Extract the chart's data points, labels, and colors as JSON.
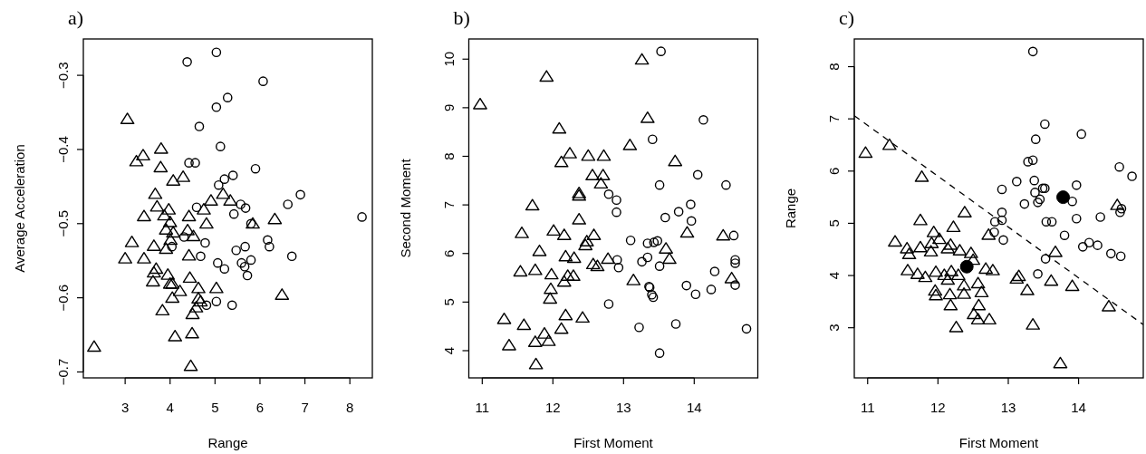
{
  "chart_data": [
    {
      "type": "scatter",
      "title": "a)",
      "xlabel": "Range",
      "ylabel": "Average Acceleration",
      "xlim": [
        2.07,
        8.5
      ],
      "ylim": [
        -0.708,
        -0.251
      ],
      "xticks": [
        3,
        4,
        5,
        6,
        7,
        8
      ],
      "yticks": [
        -0.7,
        -0.6,
        -0.5,
        -0.4,
        -0.3
      ],
      "series": [
        {
          "color": "#000000",
          "marker": "triangle",
          "x": [
            3.05,
            3.25,
            3.4,
            3.8,
            3.79,
            4.07,
            4.29,
            3.67,
            5.18,
            4.91,
            5.34,
            3.71,
            3.97,
            4.75,
            6.33,
            3.42,
            3.87,
            4.42,
            4.0,
            4.81,
            5.84,
            4.39,
            4.52,
            3.91,
            4.07,
            3.15,
            4.01,
            3.64,
            3.91,
            3.0,
            3.42,
            4.42,
            3.69,
            3.64,
            3.62,
            3.95,
            4.0,
            4.05,
            4.22,
            4.05,
            4.44,
            4.63,
            5.03,
            6.49,
            4.63,
            4.68,
            4.58,
            3.83,
            4.5,
            4.49,
            4.11,
            2.31,
            4.46
          ],
          "values": [
            -0.359,
            -0.416,
            -0.408,
            -0.399,
            -0.424,
            -0.442,
            -0.437,
            -0.46,
            -0.46,
            -0.469,
            -0.469,
            -0.477,
            -0.481,
            -0.481,
            -0.494,
            -0.49,
            -0.489,
            -0.49,
            -0.498,
            -0.5,
            -0.5,
            -0.509,
            -0.517,
            -0.508,
            -0.512,
            -0.525,
            -0.522,
            -0.53,
            -0.534,
            -0.547,
            -0.547,
            -0.543,
            -0.561,
            -0.566,
            -0.578,
            -0.569,
            -0.581,
            -0.581,
            -0.591,
            -0.6,
            -0.573,
            -0.587,
            -0.587,
            -0.596,
            -0.601,
            -0.605,
            -0.613,
            -0.617,
            -0.622,
            -0.648,
            -0.652,
            -0.666,
            -0.692
          ]
        },
        {
          "color": "#000000",
          "marker": "circle",
          "x": [
            5.03,
            4.38,
            6.07,
            5.28,
            5.03,
            4.65,
            5.12,
            4.42,
            4.56,
            5.9,
            5.4,
            5.21,
            5.08,
            6.9,
            6.62,
            5.57,
            5.68,
            4.59,
            5.42,
            8.27,
            5.8,
            4.31,
            6.17,
            6.21,
            4.78,
            4.04,
            5.67,
            5.47,
            6.71,
            4.68,
            5.06,
            5.21,
            5.59,
            5.66,
            5.8,
            5.72,
            5.03,
            4.81,
            5.38
          ],
          "values": [
            -0.269,
            -0.282,
            -0.308,
            -0.33,
            -0.343,
            -0.369,
            -0.396,
            -0.418,
            -0.418,
            -0.426,
            -0.435,
            -0.44,
            -0.448,
            -0.461,
            -0.474,
            -0.474,
            -0.479,
            -0.478,
            -0.487,
            -0.491,
            -0.5,
            -0.518,
            -0.522,
            -0.531,
            -0.526,
            -0.531,
            -0.531,
            -0.536,
            -0.544,
            -0.544,
            -0.553,
            -0.561,
            -0.553,
            -0.558,
            -0.549,
            -0.57,
            -0.605,
            -0.61,
            -0.61
          ]
        }
      ]
    },
    {
      "type": "scatter",
      "title": "b)",
      "xlabel": "First Moment",
      "ylabel": "Second Moment",
      "xlim": [
        10.81,
        14.9
      ],
      "ylim": [
        3.44,
        10.415
      ],
      "xticks": [
        11,
        12,
        13,
        14
      ],
      "yticks": [
        4,
        5,
        6,
        7,
        8,
        9,
        10
      ],
      "series": [
        {
          "color": "#000000",
          "marker": "triangle",
          "x": [
            10.97,
            11.91,
            13.26,
            13.34,
            12.09,
            12.24,
            12.12,
            12.5,
            12.72,
            13.09,
            13.73,
            12.56,
            12.71,
            12.68,
            12.37,
            12.37,
            11.71,
            12.37,
            11.56,
            12.01,
            12.16,
            12.58,
            12.48,
            12.46,
            11.81,
            12.18,
            12.3,
            12.78,
            11.54,
            11.75,
            11.98,
            12.21,
            12.29,
            12.16,
            12.57,
            12.63,
            11.97,
            11.96,
            13.14,
            13.6,
            13.65,
            13.9,
            14.41,
            14.53,
            11.31,
            11.59,
            12.18,
            12.42,
            12.12,
            11.88,
            11.38,
            11.75,
            11.94,
            11.76
          ],
          "values": [
            9.07,
            9.64,
            9.99,
            8.79,
            8.57,
            8.06,
            7.88,
            8.01,
            8.01,
            8.23,
            7.9,
            7.61,
            7.61,
            7.44,
            7.24,
            7.19,
            6.99,
            6.7,
            6.42,
            6.47,
            6.38,
            6.38,
            6.25,
            6.17,
            6.05,
            5.94,
            5.91,
            5.89,
            5.63,
            5.66,
            5.57,
            5.54,
            5.54,
            5.42,
            5.78,
            5.74,
            5.27,
            5.07,
            5.45,
            6.1,
            5.89,
            6.43,
            6.37,
            5.49,
            4.65,
            4.53,
            4.73,
            4.68,
            4.45,
            4.35,
            4.11,
            4.18,
            4.2,
            3.72
          ]
        },
        {
          "color": "#000000",
          "marker": "circle",
          "x": [
            13.53,
            14.13,
            13.41,
            14.05,
            13.51,
            14.45,
            12.79,
            12.9,
            13.95,
            13.78,
            12.9,
            13.59,
            13.96,
            13.1,
            13.34,
            13.43,
            13.48,
            14.56,
            12.91,
            12.93,
            13.34,
            13.26,
            13.51,
            14.58,
            14.58,
            14.29,
            13.36,
            13.37,
            13.4,
            13.42,
            13.89,
            14.02,
            14.24,
            14.58,
            12.79,
            13.22,
            13.74,
            14.74,
            13.51
          ],
          "values": [
            10.16,
            8.75,
            8.35,
            7.62,
            7.41,
            7.41,
            7.22,
            7.1,
            7.01,
            6.86,
            6.85,
            6.74,
            6.67,
            6.27,
            6.21,
            6.23,
            6.26,
            6.37,
            5.87,
            5.71,
            5.92,
            5.83,
            5.74,
            5.87,
            5.8,
            5.63,
            5.32,
            5.3,
            5.15,
            5.1,
            5.34,
            5.16,
            5.26,
            5.35,
            4.96,
            4.48,
            4.55,
            4.45,
            3.95
          ]
        }
      ]
    },
    {
      "type": "scatter",
      "title": "c)",
      "xlabel": "First Moment",
      "ylabel": "Range",
      "xlim": [
        10.81,
        14.92
      ],
      "ylim": [
        2.04,
        8.53
      ],
      "xticks": [
        11,
        12,
        13,
        14
      ],
      "yticks": [
        3,
        4,
        5,
        6,
        7,
        8
      ],
      "series": [
        {
          "color": "#000000",
          "marker": "triangle",
          "x": [
            10.97,
            11.31,
            11.77,
            12.38,
            14.55,
            11.75,
            12.22,
            11.94,
            12.02,
            11.91,
            12.18,
            11.39,
            11.56,
            11.59,
            11.75,
            11.9,
            12.14,
            12.31,
            12.47,
            12.5,
            12.72,
            13.67,
            11.57,
            11.71,
            11.82,
            11.97,
            12.09,
            12.19,
            12.14,
            12.29,
            12.68,
            12.78,
            13.12,
            13.15,
            13.61,
            12.37,
            12.57,
            12.37,
            12.62,
            11.96,
            11.97,
            12.17,
            12.18,
            12.58,
            12.51,
            12.57,
            12.73,
            12.26,
            13.27,
            13.91,
            13.35,
            14.43,
            13.74
          ],
          "values": [
            6.35,
            6.5,
            5.89,
            5.21,
            5.35,
            5.06,
            4.93,
            4.83,
            4.7,
            4.62,
            4.59,
            4.65,
            4.52,
            4.41,
            4.54,
            4.46,
            4.52,
            4.48,
            4.43,
            4.3,
            4.78,
            4.45,
            4.1,
            4.03,
            3.97,
            4.07,
            4.01,
            4.08,
            3.92,
            4.01,
            4.13,
            4.1,
            3.94,
            3.99,
            3.9,
            3.81,
            3.85,
            3.65,
            3.68,
            3.71,
            3.62,
            3.64,
            3.43,
            3.43,
            3.26,
            3.16,
            3.16,
            3.01,
            3.72,
            3.8,
            3.06,
            3.41,
            2.32
          ]
        },
        {
          "color": "#000000",
          "marker": "circle",
          "x": [
            13.35,
            13.52,
            14.04,
            13.39,
            13.28,
            13.35,
            14.58,
            14.76,
            12.91,
            13.12,
            13.37,
            13.38,
            13.49,
            13.52,
            13.97,
            13.23,
            13.45,
            13.42,
            13.91,
            12.91,
            14.61,
            14.59,
            13.97,
            14.31,
            13.54,
            13.62,
            12.81,
            12.91,
            12.8,
            12.93,
            13.8,
            14.06,
            14.15,
            14.27,
            14.46,
            14.6,
            13.53,
            13.42
          ],
          "values": [
            8.29,
            6.9,
            6.71,
            6.61,
            6.18,
            6.21,
            6.08,
            5.9,
            5.65,
            5.8,
            5.82,
            5.59,
            5.67,
            5.67,
            5.73,
            5.37,
            5.46,
            5.4,
            5.42,
            5.21,
            5.28,
            5.21,
            5.09,
            5.12,
            5.03,
            5.03,
            5.03,
            5.06,
            4.83,
            4.68,
            4.77,
            4.55,
            4.63,
            4.58,
            4.42,
            4.37,
            4.32,
            4.03
          ]
        },
        {
          "type": "bubble",
          "color": "#000000",
          "x": [
            13.78,
            12.41
          ],
          "values": [
            5.5,
            4.17
          ],
          "sizes": [
            1,
            1
          ]
        },
        {
          "type": "line",
          "color": "#000000",
          "line_style": "dashed",
          "x": [
            10.81,
            14.92
          ],
          "values": [
            7.06,
            3.06
          ]
        }
      ]
    }
  ]
}
